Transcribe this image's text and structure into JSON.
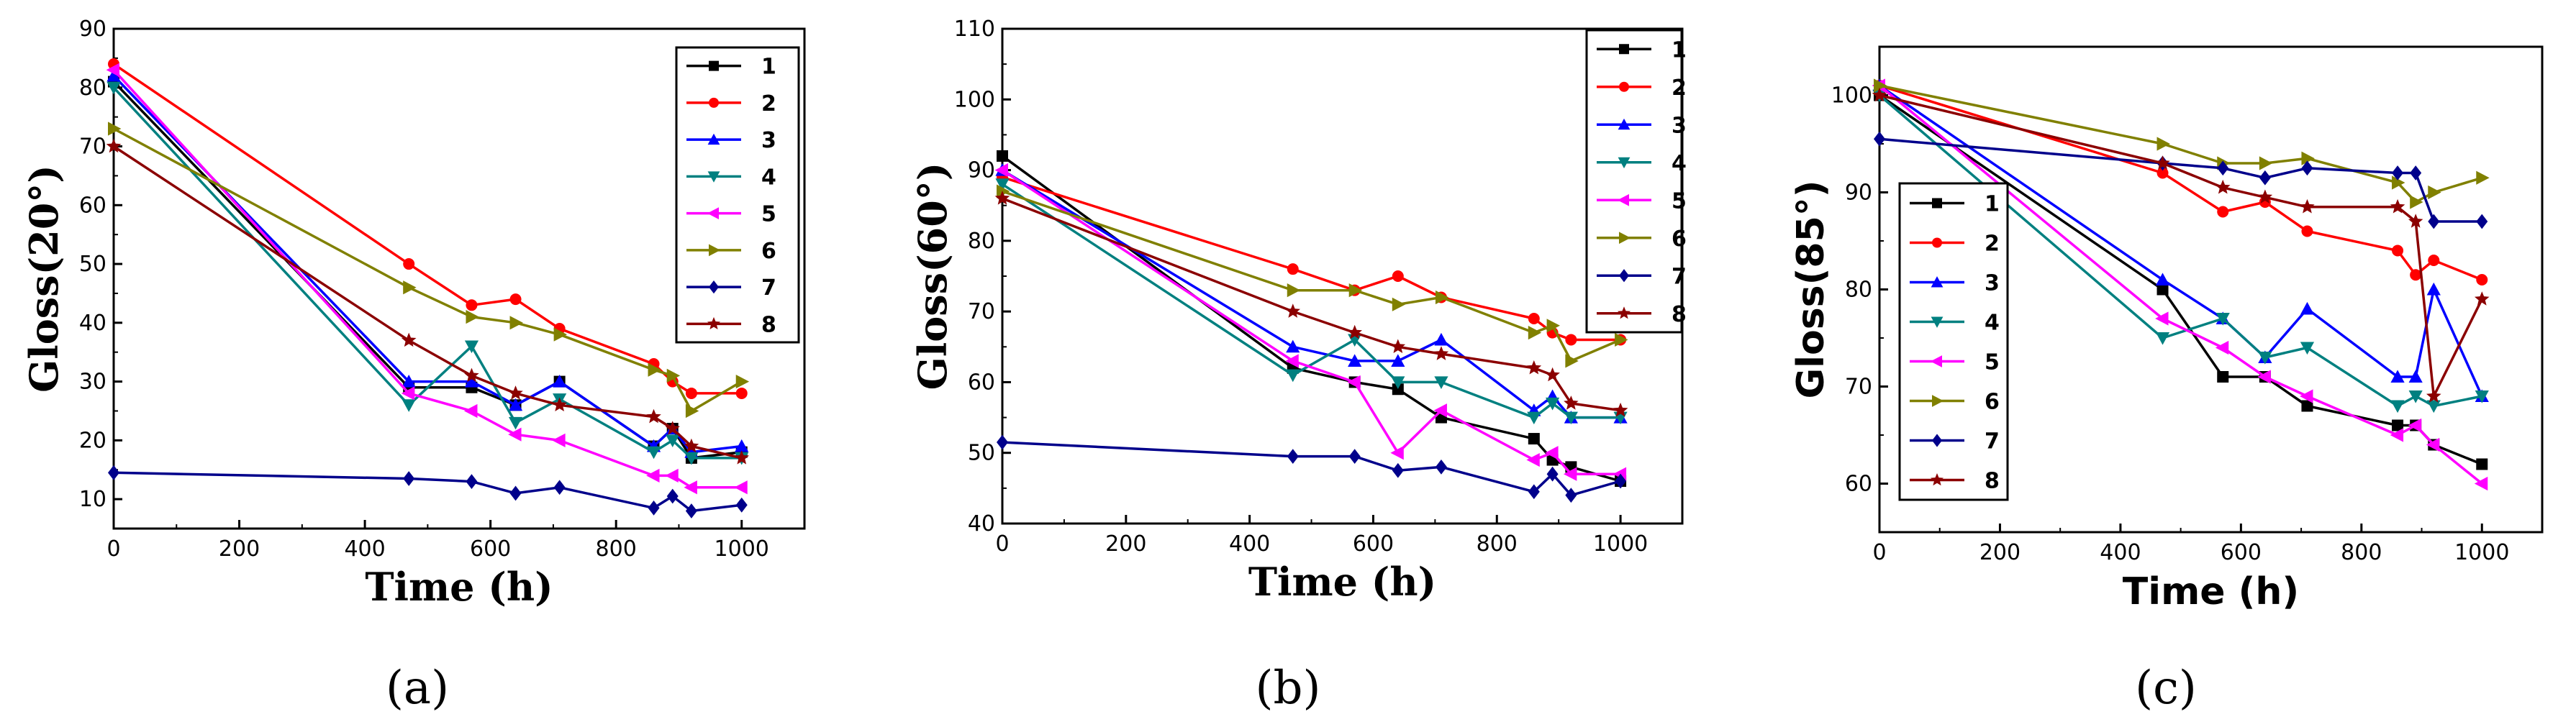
{
  "chart_data": [
    {
      "type": "line",
      "panel_label": "(a)",
      "xlabel": "Time (h)",
      "ylabel": "Gloss(20°)",
      "xlim": [
        0,
        1100
      ],
      "ylim": [
        5,
        90
      ],
      "xticks": [
        0,
        200,
        400,
        600,
        800,
        1000
      ],
      "yticks": [
        10,
        20,
        30,
        40,
        50,
        60,
        70,
        80,
        90
      ],
      "legend_position": "top-right",
      "series": [
        {
          "name": "1",
          "color": "#000000",
          "marker": "square",
          "x": [
            0,
            470,
            570,
            640,
            710,
            860,
            890,
            920,
            1000
          ],
          "y": [
            81,
            29,
            29,
            26,
            30,
            19,
            22,
            17,
            18
          ]
        },
        {
          "name": "2",
          "color": "#ff0000",
          "marker": "circle",
          "x": [
            0,
            470,
            570,
            640,
            710,
            860,
            890,
            920,
            1000
          ],
          "y": [
            84,
            50,
            43,
            44,
            39,
            33,
            30,
            28,
            28
          ]
        },
        {
          "name": "3",
          "color": "#0000ff",
          "marker": "triangle-up",
          "x": [
            0,
            470,
            570,
            640,
            710,
            860,
            890,
            920,
            1000
          ],
          "y": [
            82,
            30,
            30,
            26,
            30,
            19,
            22,
            18,
            19
          ]
        },
        {
          "name": "4",
          "color": "#008080",
          "marker": "triangle-down",
          "x": [
            0,
            470,
            570,
            640,
            710,
            860,
            890,
            920,
            1000
          ],
          "y": [
            80,
            26,
            36,
            23,
            27,
            18,
            20,
            17,
            17
          ]
        },
        {
          "name": "5",
          "color": "#ff00ff",
          "marker": "triangle-left",
          "x": [
            0,
            470,
            570,
            640,
            710,
            860,
            890,
            920,
            1000
          ],
          "y": [
            83,
            28,
            25,
            21,
            20,
            14,
            14,
            12,
            12
          ]
        },
        {
          "name": "6",
          "color": "#808000",
          "marker": "triangle-right",
          "x": [
            0,
            470,
            570,
            640,
            710,
            860,
            890,
            920,
            1000
          ],
          "y": [
            73,
            46,
            41,
            40,
            38,
            32,
            31,
            25,
            30
          ]
        },
        {
          "name": "7",
          "color": "#00008b",
          "marker": "diamond",
          "x": [
            0,
            470,
            570,
            640,
            710,
            860,
            890,
            920,
            1000
          ],
          "y": [
            14.5,
            13.5,
            13,
            11,
            12,
            8.5,
            10.5,
            8,
            9
          ]
        },
        {
          "name": "8",
          "color": "#8b0000",
          "marker": "star",
          "x": [
            0,
            470,
            570,
            640,
            710,
            860,
            890,
            920,
            1000
          ],
          "y": [
            70,
            37,
            31,
            28,
            26,
            24,
            22,
            19,
            17
          ]
        }
      ]
    },
    {
      "type": "line",
      "panel_label": "(b)",
      "xlabel": "Time (h)",
      "ylabel": "Gloss(60°)",
      "xlim": [
        0,
        1100
      ],
      "ylim": [
        40,
        110
      ],
      "xticks": [
        0,
        200,
        400,
        600,
        800,
        1000
      ],
      "yticks": [
        40,
        50,
        60,
        70,
        80,
        90,
        100,
        110
      ],
      "legend_position": "top-right",
      "series": [
        {
          "name": "1",
          "color": "#000000",
          "marker": "square",
          "x": [
            0,
            470,
            570,
            640,
            710,
            860,
            890,
            920,
            1000
          ],
          "y": [
            92,
            62,
            60,
            59,
            55,
            52,
            49,
            48,
            46
          ]
        },
        {
          "name": "2",
          "color": "#ff0000",
          "marker": "circle",
          "x": [
            0,
            470,
            570,
            640,
            710,
            860,
            890,
            920,
            1000
          ],
          "y": [
            89,
            76,
            73,
            75,
            72,
            69,
            67,
            66,
            66
          ]
        },
        {
          "name": "3",
          "color": "#0000ff",
          "marker": "triangle-up",
          "x": [
            0,
            470,
            570,
            640,
            710,
            860,
            890,
            920,
            1000
          ],
          "y": [
            90,
            65,
            63,
            63,
            66,
            56,
            58,
            55,
            55
          ]
        },
        {
          "name": "4",
          "color": "#008080",
          "marker": "triangle-down",
          "x": [
            0,
            470,
            570,
            640,
            710,
            860,
            890,
            920,
            1000
          ],
          "y": [
            88,
            61,
            66,
            60,
            60,
            55,
            57,
            55,
            55
          ]
        },
        {
          "name": "5",
          "color": "#ff00ff",
          "marker": "triangle-left",
          "x": [
            0,
            470,
            570,
            640,
            710,
            860,
            890,
            920,
            1000
          ],
          "y": [
            90,
            63,
            60,
            50,
            56,
            49,
            50,
            47,
            47
          ]
        },
        {
          "name": "6",
          "color": "#808000",
          "marker": "triangle-right",
          "x": [
            0,
            470,
            570,
            640,
            710,
            860,
            890,
            920,
            1000
          ],
          "y": [
            87,
            73,
            73,
            71,
            72,
            67,
            68,
            63,
            66
          ]
        },
        {
          "name": "7",
          "color": "#00008b",
          "marker": "diamond",
          "x": [
            0,
            470,
            570,
            640,
            710,
            860,
            890,
            920,
            1000
          ],
          "y": [
            51.5,
            49.5,
            49.5,
            47.5,
            48,
            44.5,
            47,
            44,
            46
          ]
        },
        {
          "name": "8",
          "color": "#8b0000",
          "marker": "star",
          "x": [
            0,
            470,
            570,
            640,
            710,
            860,
            890,
            920,
            1000
          ],
          "y": [
            86,
            70,
            67,
            65,
            64,
            62,
            61,
            57,
            56
          ]
        }
      ]
    },
    {
      "type": "line",
      "panel_label": "(c)",
      "xlabel": "Time (h)",
      "ylabel": "Gloss(85°)",
      "xlim": [
        0,
        1100
      ],
      "ylim": [
        55,
        105
      ],
      "xticks": [
        0,
        200,
        400,
        600,
        800,
        1000
      ],
      "yticks": [
        60,
        70,
        80,
        90,
        100
      ],
      "legend_position": "bottom-left",
      "series": [
        {
          "name": "1",
          "color": "#000000",
          "marker": "square",
          "x": [
            0,
            470,
            570,
            640,
            710,
            860,
            890,
            920,
            1000
          ],
          "y": [
            100,
            80,
            71,
            71,
            68,
            66,
            66,
            64,
            62
          ]
        },
        {
          "name": "2",
          "color": "#ff0000",
          "marker": "circle",
          "x": [
            0,
            470,
            570,
            640,
            710,
            860,
            890,
            920,
            1000
          ],
          "y": [
            101,
            92,
            88,
            89,
            86,
            84,
            81.5,
            83,
            81
          ]
        },
        {
          "name": "3",
          "color": "#0000ff",
          "marker": "triangle-up",
          "x": [
            0,
            470,
            570,
            640,
            710,
            860,
            890,
            920,
            1000
          ],
          "y": [
            101,
            81,
            77,
            73,
            78,
            71,
            71,
            80,
            69
          ]
        },
        {
          "name": "4",
          "color": "#008080",
          "marker": "triangle-down",
          "x": [
            0,
            470,
            570,
            640,
            710,
            860,
            890,
            920,
            1000
          ],
          "y": [
            100,
            75,
            77,
            73,
            74,
            68,
            69,
            68,
            69
          ]
        },
        {
          "name": "5",
          "color": "#ff00ff",
          "marker": "triangle-left",
          "x": [
            0,
            470,
            570,
            640,
            710,
            860,
            890,
            920,
            1000
          ],
          "y": [
            101,
            77,
            74,
            71,
            69,
            65,
            66,
            64,
            60
          ]
        },
        {
          "name": "6",
          "color": "#808000",
          "marker": "triangle-right",
          "x": [
            0,
            470,
            570,
            640,
            710,
            860,
            890,
            920,
            1000
          ],
          "y": [
            101,
            95,
            93,
            93,
            93.5,
            91,
            89,
            90,
            91.5
          ]
        },
        {
          "name": "7",
          "color": "#00008b",
          "marker": "diamond",
          "x": [
            0,
            470,
            570,
            640,
            710,
            860,
            890,
            920,
            1000
          ],
          "y": [
            95.5,
            93,
            92.5,
            91.5,
            92.5,
            92,
            92,
            87,
            87
          ]
        },
        {
          "name": "8",
          "color": "#8b0000",
          "marker": "star",
          "x": [
            0,
            470,
            570,
            640,
            710,
            860,
            890,
            920,
            1000
          ],
          "y": [
            100,
            93,
            90.5,
            89.5,
            88.5,
            88.5,
            87,
            69,
            79
          ]
        }
      ]
    }
  ]
}
